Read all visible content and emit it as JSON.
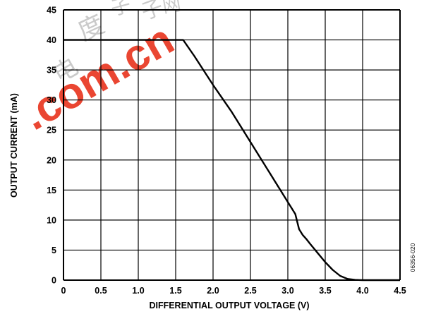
{
  "chart_data": {
    "type": "line",
    "xlabel": "DIFFERENTIAL OUTPUT VOLTAGE (V)",
    "ylabel": "OUTPUT CURRENT (mA)",
    "xlim": [
      0,
      4.5
    ],
    "ylim": [
      0,
      45
    ],
    "xticks": [
      "0",
      "0.5",
      "1.0",
      "1.5",
      "2.0",
      "2.5",
      "3.0",
      "3.5",
      "4.0",
      "4.5"
    ],
    "yticks": [
      "0",
      "5",
      "10",
      "15",
      "20",
      "25",
      "30",
      "35",
      "40",
      "45"
    ],
    "grid": true,
    "series": [
      {
        "x": [
          0,
          1.0,
          1.5,
          1.6,
          1.75,
          2.0,
          2.25,
          2.5,
          2.75,
          3.0,
          3.1,
          3.15,
          3.2,
          3.25,
          3.3,
          3.4,
          3.5,
          3.6,
          3.7,
          3.8,
          3.9,
          4.0,
          4.5
        ],
        "y": [
          40,
          40,
          40,
          40,
          37.3,
          32.5,
          28,
          23,
          18,
          13,
          11,
          8.5,
          7.5,
          6.8,
          6,
          4.5,
          3,
          1.7,
          0.7,
          0.2,
          0.05,
          0,
          0
        ]
      }
    ],
    "figure_id": "06356-020",
    "watermark": ".com.cn",
    "watermark_glyphs": [
      "子",
      "度",
      "电",
      "子",
      "网"
    ],
    "colors": {
      "line": "#000000",
      "grid": "#000000",
      "watermark": "#e8331c"
    }
  }
}
